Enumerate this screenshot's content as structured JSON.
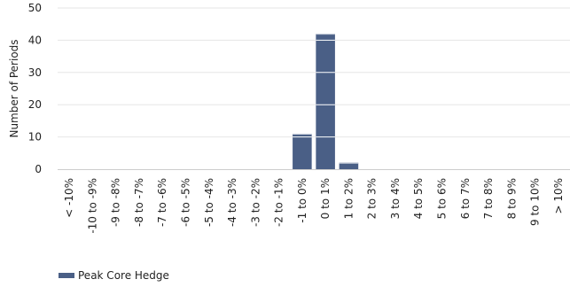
{
  "chart_data": {
    "type": "bar",
    "ylabel": "Number of Periods",
    "xlabel": "",
    "title": "",
    "categories": [
      "< -10%",
      "-10 to -9%",
      "-9 to -8%",
      "-8 to -7%",
      "-7 to -6%",
      "-6 to -5%",
      "-5 to -4%",
      "-4 to -3%",
      "-3 to -2%",
      "-2 to -1%",
      "-1 to 0%",
      "0 to 1%",
      "1 to 2%",
      "2 to 3%",
      "3 to 4%",
      "4 to 5%",
      "5 to 6%",
      "6 to 7%",
      "7 to 8%",
      "8 to 9%",
      "9 to 10%",
      "> 10%"
    ],
    "series": [
      {
        "name": "Peak Core Hedge",
        "color": "#4a5f86",
        "values": [
          0,
          0,
          0,
          0,
          0,
          0,
          0,
          0,
          0,
          0,
          11,
          42,
          2,
          0,
          0,
          0,
          0,
          0,
          0,
          0,
          0,
          0
        ]
      }
    ],
    "ylim": [
      0,
      50
    ],
    "yticks": [
      0,
      10,
      20,
      30,
      40,
      50
    ],
    "grid": true,
    "legend_position": "bottom-left"
  }
}
